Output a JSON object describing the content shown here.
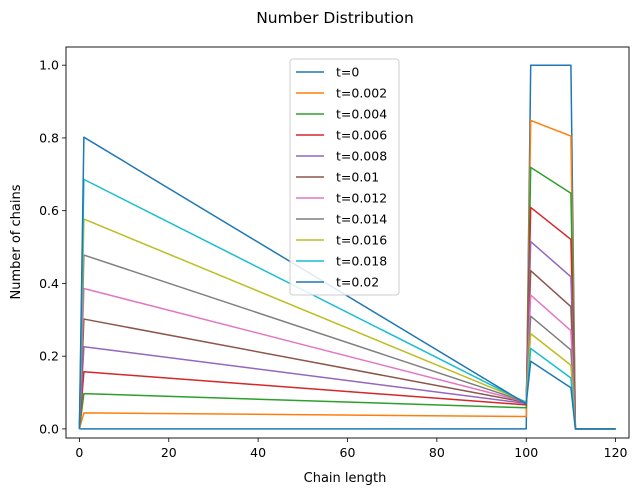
{
  "chart_data": {
    "type": "line",
    "title": "Number Distribution",
    "xlabel": "Chain length",
    "ylabel": "Number of chains",
    "xlim": [
      -3,
      123
    ],
    "ylim": [
      -0.025,
      1.05
    ],
    "xticks": [
      0,
      20,
      40,
      60,
      80,
      100,
      120
    ],
    "yticks": [
      0.0,
      0.2,
      0.4,
      0.6,
      0.8,
      1.0
    ],
    "xtick_labels": [
      "0",
      "20",
      "40",
      "60",
      "80",
      "100",
      "120"
    ],
    "ytick_labels": [
      "0.0",
      "0.2",
      "0.4",
      "0.6",
      "0.8",
      "1.0"
    ],
    "legend_position": "upper-center",
    "series": [
      {
        "name": "t=0",
        "color": "#1f77b4",
        "points": [
          [
            0,
            0
          ],
          [
            100,
            0
          ],
          [
            101,
            1.0
          ],
          [
            110,
            1.0
          ],
          [
            111,
            0
          ],
          [
            120,
            0
          ]
        ]
      },
      {
        "name": "t=0.002",
        "color": "#ff7f0e",
        "points": [
          [
            0,
            0
          ],
          [
            1,
            0.044
          ],
          [
            100,
            0.034
          ],
          [
            101,
            0.848
          ],
          [
            110,
            0.805
          ],
          [
            111,
            0
          ],
          [
            120,
            0
          ]
        ]
      },
      {
        "name": "t=0.004",
        "color": "#2ca02c",
        "points": [
          [
            0,
            0
          ],
          [
            1,
            0.097
          ],
          [
            100,
            0.058
          ],
          [
            101,
            0.719
          ],
          [
            110,
            0.648
          ],
          [
            111,
            0
          ],
          [
            120,
            0
          ]
        ]
      },
      {
        "name": "t=0.006",
        "color": "#d62728",
        "points": [
          [
            0,
            0
          ],
          [
            1,
            0.157
          ],
          [
            100,
            0.066
          ],
          [
            101,
            0.609
          ],
          [
            110,
            0.521
          ],
          [
            111,
            0
          ],
          [
            120,
            0
          ]
        ]
      },
      {
        "name": "t=0.008",
        "color": "#9467bd",
        "points": [
          [
            0,
            0
          ],
          [
            1,
            0.226
          ],
          [
            100,
            0.07
          ],
          [
            101,
            0.515
          ],
          [
            110,
            0.418
          ],
          [
            111,
            0
          ],
          [
            120,
            0
          ]
        ]
      },
      {
        "name": "t=0.01",
        "color": "#8c564b",
        "points": [
          [
            0,
            0
          ],
          [
            1,
            0.302
          ],
          [
            100,
            0.073
          ],
          [
            101,
            0.435
          ],
          [
            110,
            0.336
          ],
          [
            111,
            0
          ],
          [
            120,
            0
          ]
        ]
      },
      {
        "name": "t=0.012",
        "color": "#e377c2",
        "points": [
          [
            0,
            0
          ],
          [
            1,
            0.386
          ],
          [
            100,
            0.074
          ],
          [
            101,
            0.368
          ],
          [
            110,
            0.27
          ],
          [
            111,
            0
          ],
          [
            120,
            0
          ]
        ]
      },
      {
        "name": "t=0.014",
        "color": "#7f7f7f",
        "points": [
          [
            0,
            0
          ],
          [
            1,
            0.478
          ],
          [
            100,
            0.074
          ],
          [
            101,
            0.31
          ],
          [
            110,
            0.217
          ],
          [
            111,
            0
          ],
          [
            120,
            0
          ]
        ]
      },
      {
        "name": "t=0.016",
        "color": "#bcbd22",
        "points": [
          [
            0,
            0
          ],
          [
            1,
            0.577
          ],
          [
            100,
            0.074
          ],
          [
            101,
            0.262
          ],
          [
            110,
            0.175
          ],
          [
            111,
            0
          ],
          [
            120,
            0
          ]
        ]
      },
      {
        "name": "t=0.018",
        "color": "#17becf",
        "points": [
          [
            0,
            0
          ],
          [
            1,
            0.686
          ],
          [
            100,
            0.072
          ],
          [
            101,
            0.221
          ],
          [
            110,
            0.14
          ],
          [
            111,
            0
          ],
          [
            120,
            0
          ]
        ]
      },
      {
        "name": "t=0.02",
        "color": "#1f77b4",
        "points": [
          [
            0,
            0
          ],
          [
            1,
            0.802
          ],
          [
            100,
            0.069
          ],
          [
            101,
            0.186
          ],
          [
            110,
            0.113
          ],
          [
            111,
            0
          ],
          [
            120,
            0
          ]
        ]
      }
    ]
  }
}
